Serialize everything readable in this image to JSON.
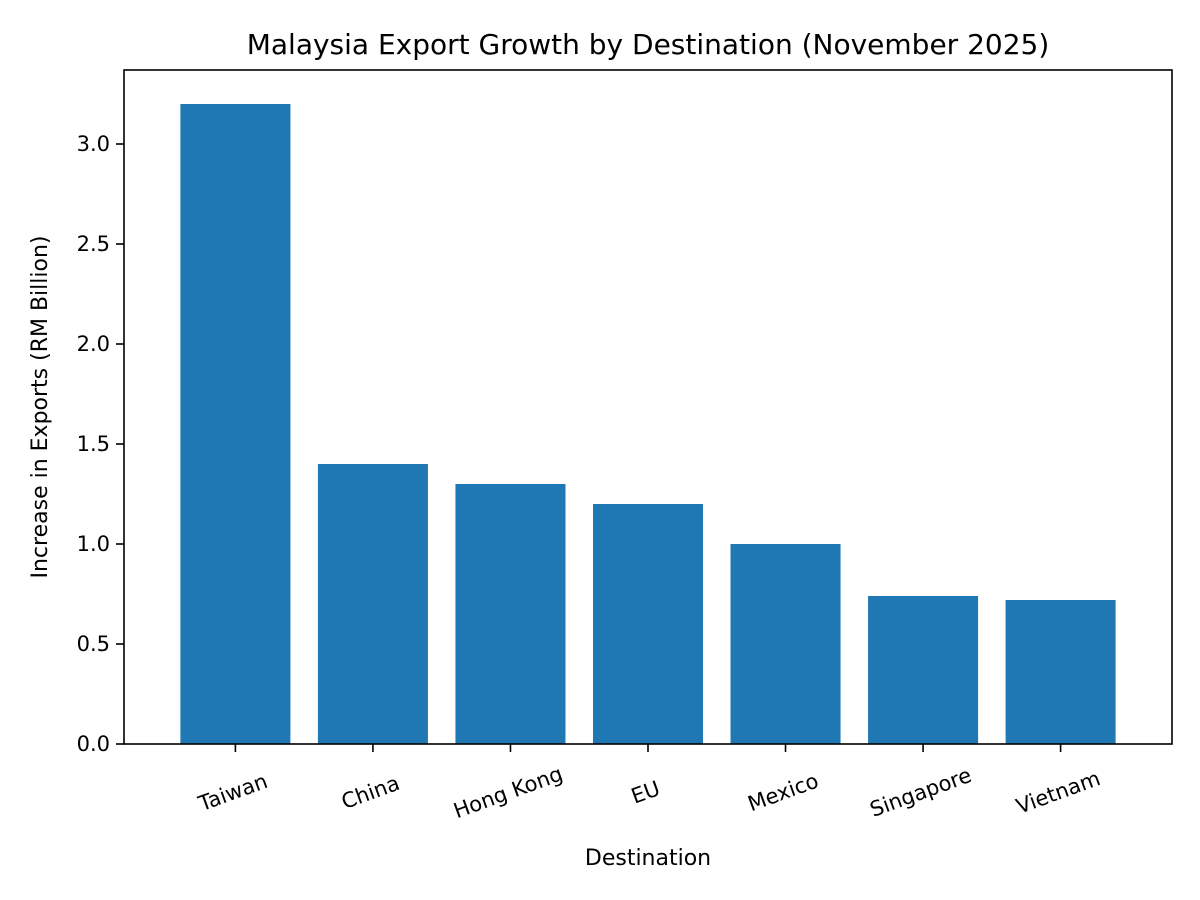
{
  "chart_data": {
    "type": "bar",
    "title": "Malaysia Export Growth by Destination (November 2025)",
    "xlabel": "Destination",
    "ylabel": "Increase in Exports (RM Billion)",
    "categories": [
      "Taiwan",
      "China",
      "Hong Kong",
      "EU",
      "Mexico",
      "Singapore",
      "Vietnam"
    ],
    "values": [
      3.2,
      1.4,
      1.3,
      1.2,
      1.0,
      0.74,
      0.72
    ],
    "ylim": [
      0,
      3.37
    ],
    "yticks": [
      0.0,
      0.5,
      1.0,
      1.5,
      2.0,
      2.5,
      3.0
    ],
    "ytick_labels": [
      "0.0",
      "0.5",
      "1.0",
      "1.5",
      "2.0",
      "2.5",
      "3.0"
    ],
    "xtick_rotation_deg": 20,
    "grid": false,
    "legend": "none",
    "bar_color": "#1f77b4"
  }
}
